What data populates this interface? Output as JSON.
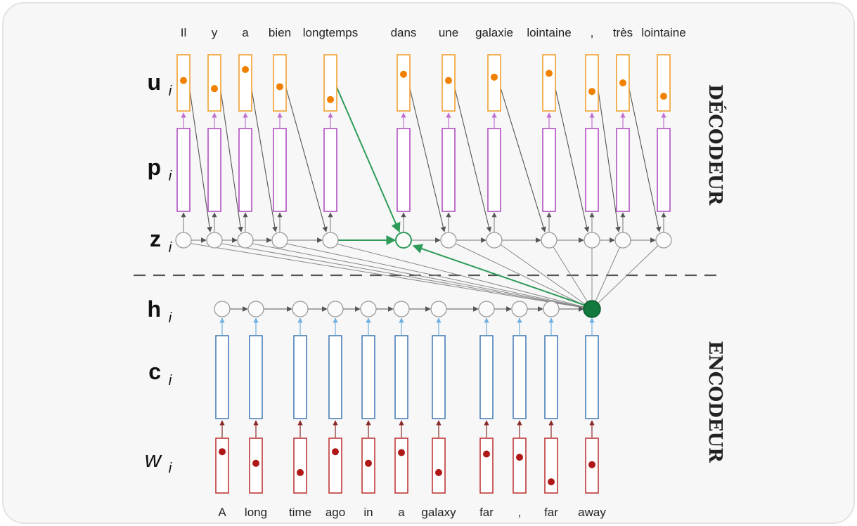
{
  "decoder_words": [
    "Il",
    "y",
    "a",
    "bien",
    "longtemps",
    "dans",
    "une",
    "galaxie",
    "lointaine",
    ",",
    "très",
    "lointaine"
  ],
  "encoder_words": [
    "A",
    "long",
    "time",
    "ago",
    "in",
    "a",
    "galaxy",
    "far",
    ",",
    "far",
    "away"
  ],
  "row_labels": {
    "u": {
      "main": "u",
      "sub": "i"
    },
    "p": {
      "main": "p",
      "sub": "i"
    },
    "z": {
      "main": "z",
      "sub": "i"
    },
    "h": {
      "main": "h",
      "sub": "i"
    },
    "c": {
      "main": "c",
      "sub": "i"
    },
    "w": {
      "main": "w",
      "sub": "i"
    }
  },
  "side_labels": {
    "decoder": "DÉCODEUR",
    "encoder": "ENCODEUR"
  },
  "decoder_u_levels": [
    0.45,
    0.62,
    0.22,
    0.58,
    0.85,
    0.32,
    0.45,
    0.38,
    0.3,
    0.68,
    0.5,
    0.78
  ],
  "encoder_w_levels": [
    0.2,
    0.45,
    0.65,
    0.2,
    0.45,
    0.22,
    0.65,
    0.25,
    0.32,
    0.85,
    0.48
  ],
  "colors": {
    "u_box": "#f0a030",
    "u_dot": "#f08000",
    "p_box": "#b050c0",
    "z_node": "#999999",
    "h_node": "#999999",
    "c_box": "#4a7fb8",
    "w_box": "#c03838",
    "w_dot": "#b01818",
    "attention": "#2e9b5a",
    "context_node": "#12783c",
    "arrow": "#555555",
    "up_arrow_decoder": "#c070d0",
    "up_arrow_encoder": "#6fb0e0",
    "up_arrow_w": "#8a2a2a",
    "divider": "#555555"
  }
}
